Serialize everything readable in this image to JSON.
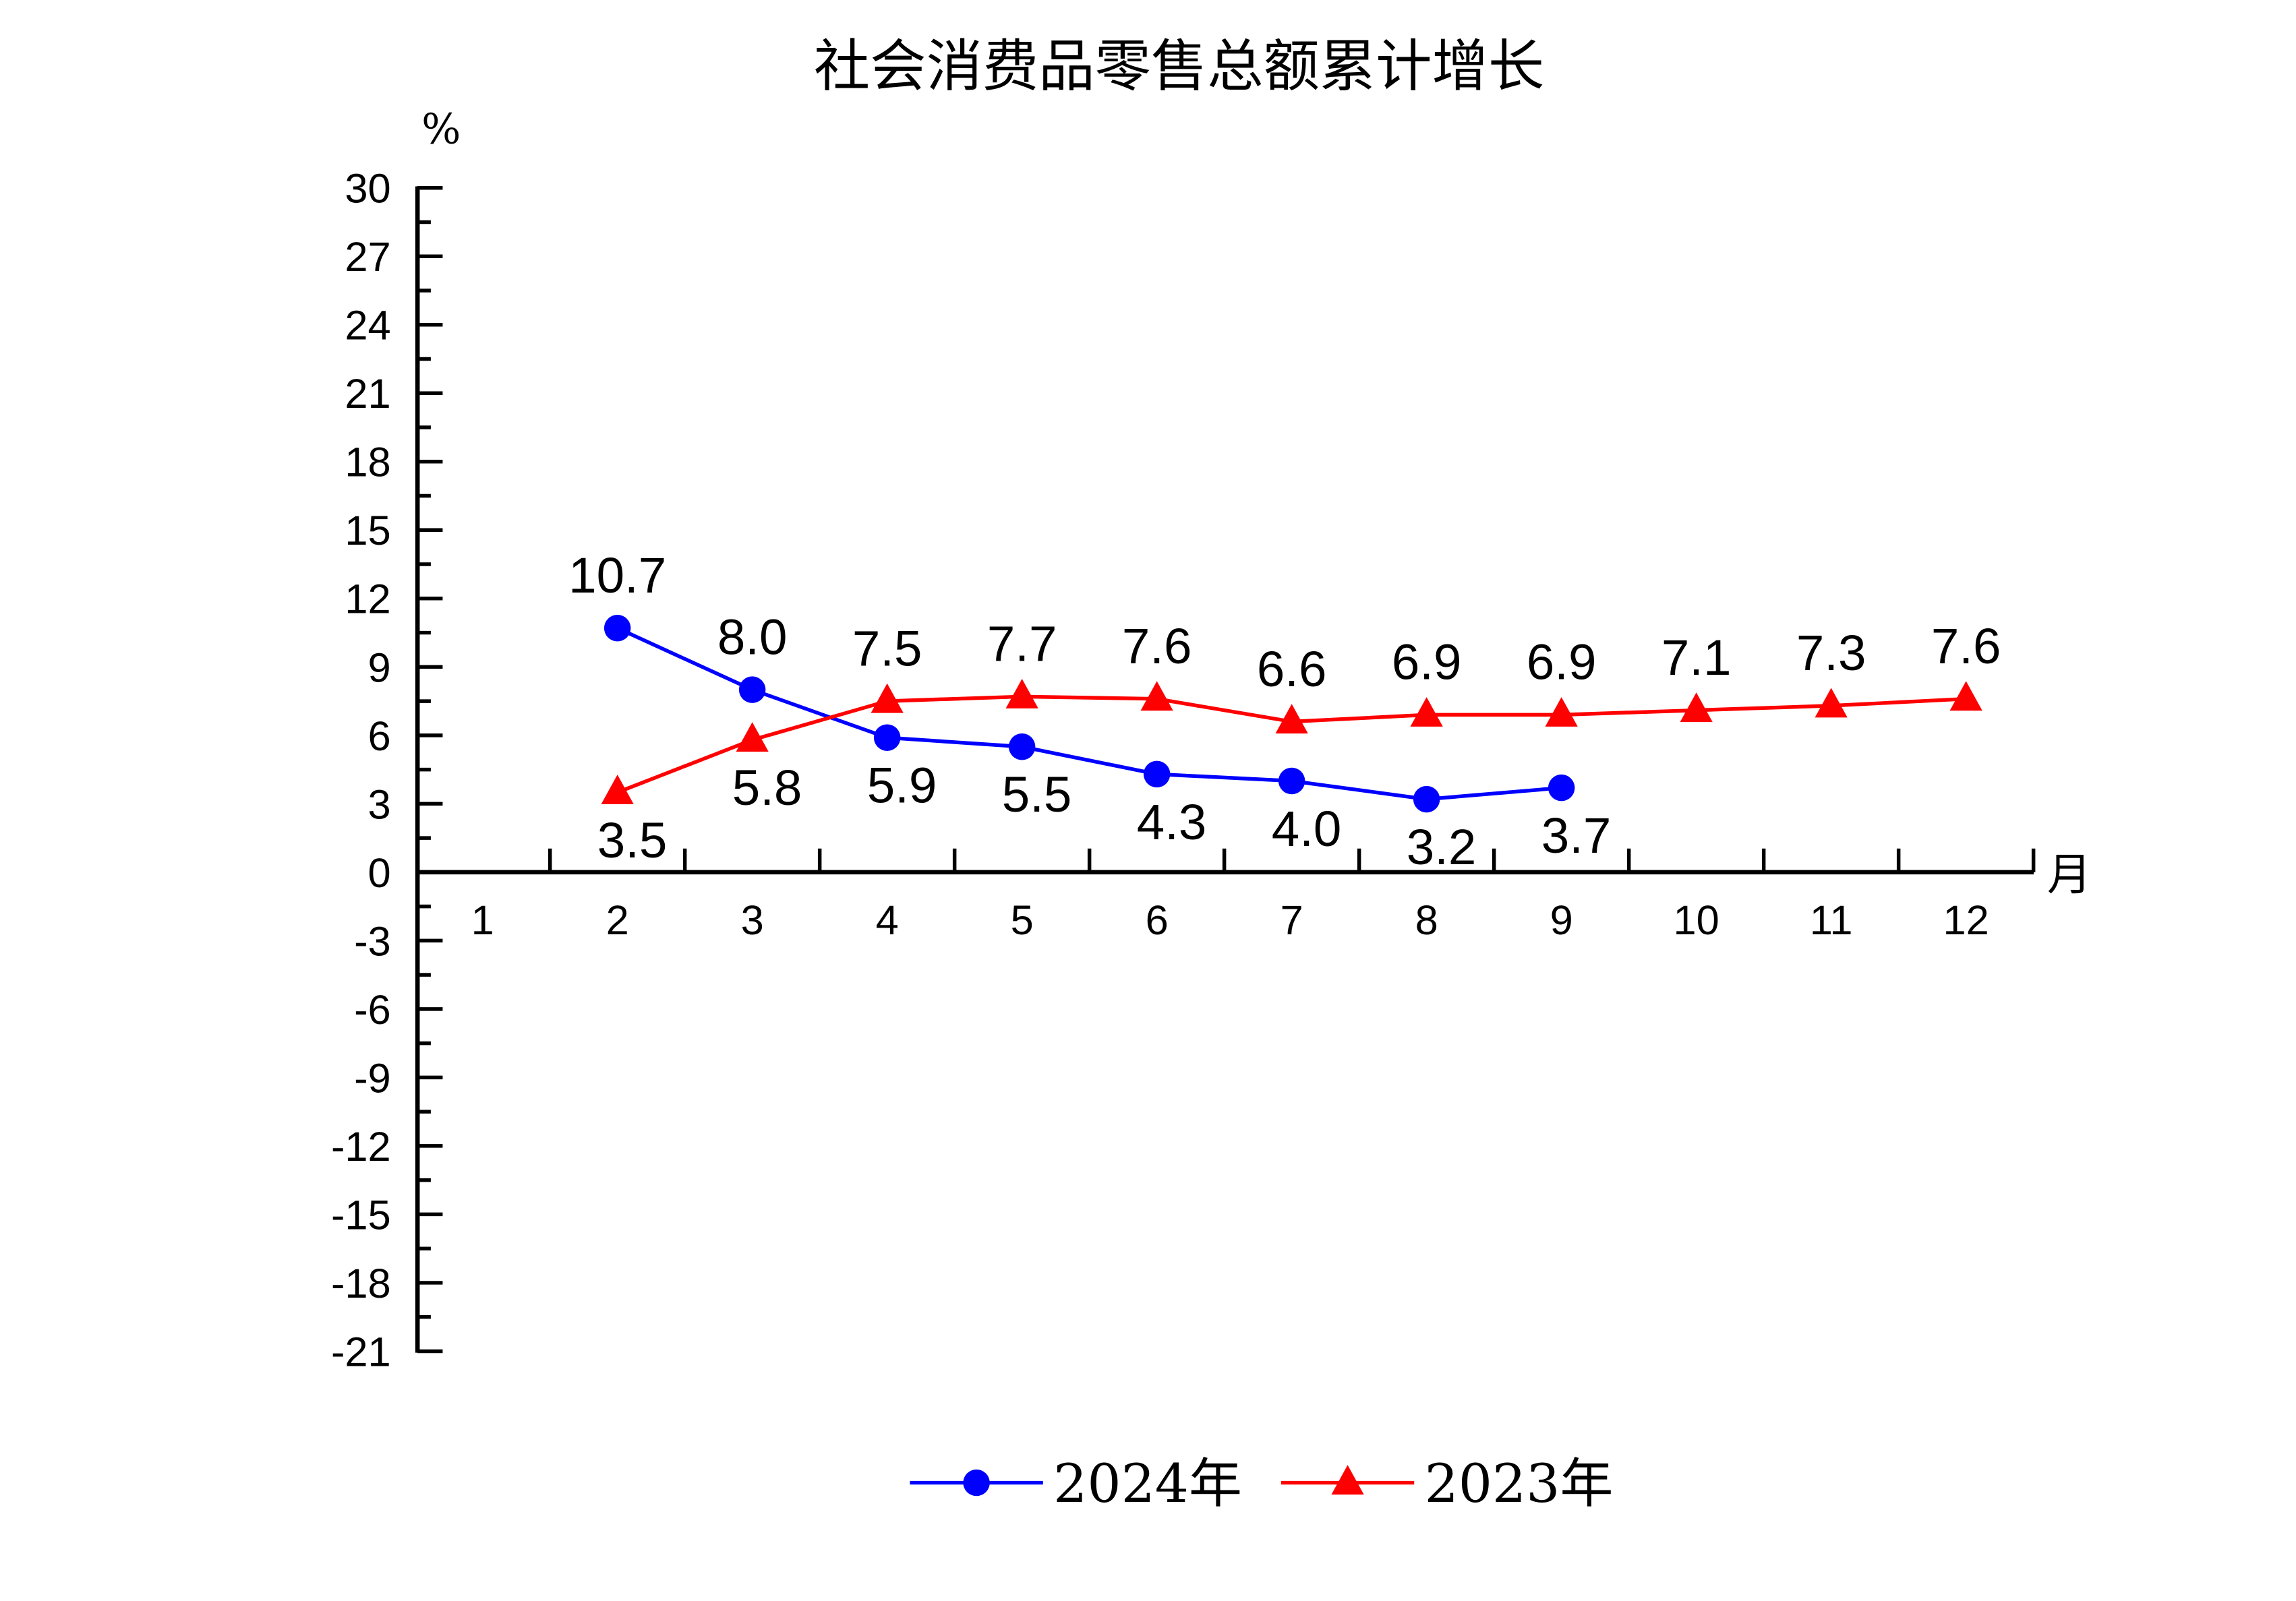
{
  "chart_data": {
    "type": "line",
    "title": "社会消费品零售总额累计增长",
    "ylabel": "%",
    "xlabel": "月",
    "ylim": [
      -21,
      30
    ],
    "yticks": [
      30,
      27,
      24,
      21,
      18,
      15,
      12,
      9,
      6,
      3,
      0,
      -3,
      -6,
      -9,
      -12,
      -15,
      -18,
      -21
    ],
    "categories": [
      "1",
      "2",
      "3",
      "4",
      "5",
      "6",
      "7",
      "8",
      "9",
      "10",
      "11",
      "12"
    ],
    "legend_position": "bottom",
    "series": [
      {
        "name": "2024年",
        "color": "#0000ff",
        "marker": "circle",
        "x": [
          2,
          3,
          4,
          5,
          6,
          7,
          8,
          9
        ],
        "values": [
          10.7,
          8.0,
          5.9,
          5.5,
          4.3,
          4.0,
          3.2,
          3.7
        ],
        "labels": [
          "10.7",
          "8.0",
          "5.9",
          "5.5",
          "4.3",
          "4.0",
          "3.2",
          "3.7"
        ],
        "label_side": [
          "above",
          "above",
          "below",
          "below",
          "below",
          "below",
          "below",
          "below"
        ]
      },
      {
        "name": "2023年",
        "color": "#ff0000",
        "marker": "triangle",
        "x": [
          2,
          3,
          4,
          5,
          6,
          7,
          8,
          9,
          10,
          11,
          12
        ],
        "values": [
          3.5,
          5.8,
          7.5,
          7.7,
          7.6,
          6.6,
          6.9,
          6.9,
          7.1,
          7.3,
          7.6
        ],
        "labels": [
          "3.5",
          "5.8",
          "7.5",
          "7.7",
          "7.6",
          "6.6",
          "6.9",
          "6.9",
          "7.1",
          "7.3",
          "7.6"
        ],
        "label_side": [
          "below",
          "below",
          "above",
          "above",
          "above",
          "above",
          "above",
          "above",
          "above",
          "above",
          "above"
        ]
      }
    ]
  }
}
